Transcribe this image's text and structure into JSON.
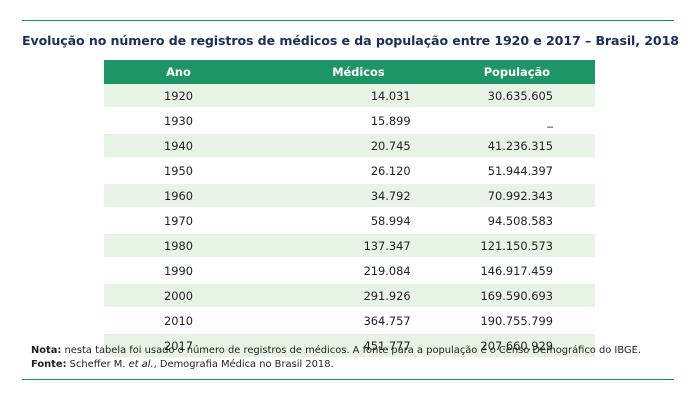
{
  "title": "Evolução no número de registros de médicos e da população entre 1920 e 2017 – Brasil, 2018",
  "table": {
    "headers": [
      "Ano",
      "Médicos",
      "População"
    ],
    "rows": [
      {
        "ano": "1920",
        "medicos": "14.031",
        "populacao": "30.635.605"
      },
      {
        "ano": "1930",
        "medicos": "15.899",
        "populacao": "_"
      },
      {
        "ano": "1940",
        "medicos": "20.745",
        "populacao": "41.236.315"
      },
      {
        "ano": "1950",
        "medicos": "26.120",
        "populacao": "51.944.397"
      },
      {
        "ano": "1960",
        "medicos": "34.792",
        "populacao": "70.992.343"
      },
      {
        "ano": "1970",
        "medicos": "58.994",
        "populacao": "94.508.583"
      },
      {
        "ano": "1980",
        "medicos": "137.347",
        "populacao": "121.150.573"
      },
      {
        "ano": "1990",
        "medicos": "219.084",
        "populacao": "146.917.459"
      },
      {
        "ano": "2000",
        "medicos": "291.926",
        "populacao": "169.590.693"
      },
      {
        "ano": "2010",
        "medicos": "364.757",
        "populacao": "190.755.799"
      },
      {
        "ano": "2017",
        "medicos": "451.777",
        "populacao": "207.660.929"
      }
    ]
  },
  "notes": {
    "nota_label": "Nota:",
    "nota_text": " nesta tabela foi usado o número de registros de médicos. A fonte para a população é o Censo Demográfico do IBGE.",
    "fonte_label": "Fonte:",
    "fonte_pre": " Scheffer M. ",
    "fonte_italic": "et al.",
    "fonte_post": ", Demografia Médica no Brasil 2018."
  },
  "colors": {
    "header_green": "#1e9566",
    "row_shade": "#e7f3e5",
    "title_navy": "#1b2f5c",
    "rule_green": "#1a8d6a"
  }
}
